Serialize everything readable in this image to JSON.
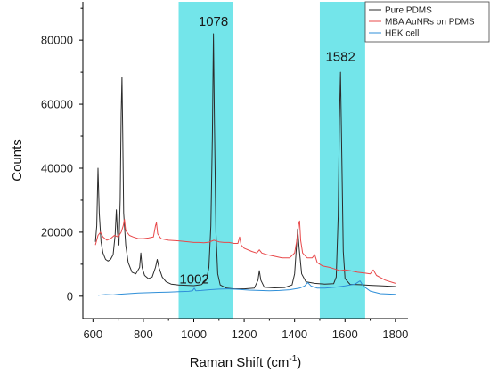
{
  "chart_data": {
    "type": "line",
    "xlabel": "Raman Shift (cm",
    "xlabel_sup": "-1",
    "xlabel_tail": ")",
    "ylabel": "Counts",
    "xlim": [
      560,
      1850
    ],
    "ylim": [
      -7000,
      92000
    ],
    "xticks": [
      600,
      800,
      1000,
      1200,
      1400,
      1600,
      1800
    ],
    "yticks": [
      0,
      20000,
      40000,
      60000,
      80000
    ],
    "grid": false,
    "legend_position": "top-right",
    "highlight_bands": [
      {
        "from": 940,
        "to": 1155,
        "color": "#73e5ea"
      },
      {
        "from": 1500,
        "to": 1680,
        "color": "#73e5ea"
      }
    ],
    "annotations": [
      {
        "text": "1078",
        "x": 1078,
        "y": 84500
      },
      {
        "text": "1582",
        "x": 1582,
        "y": 73500
      },
      {
        "text": "1002",
        "x": 1002,
        "y": 4000
      }
    ],
    "series": [
      {
        "name": "Pure PDMS",
        "color": "#2b2b2b",
        "points": [
          [
            610,
            17000
          ],
          [
            615,
            22000
          ],
          [
            620,
            40000
          ],
          [
            625,
            26000
          ],
          [
            632,
            17000
          ],
          [
            640,
            13500
          ],
          [
            650,
            11500
          ],
          [
            660,
            11000
          ],
          [
            670,
            11500
          ],
          [
            680,
            13000
          ],
          [
            688,
            19000
          ],
          [
            693,
            27000
          ],
          [
            697,
            20000
          ],
          [
            703,
            16000
          ],
          [
            708,
            30000
          ],
          [
            712,
            57000
          ],
          [
            715,
            68500
          ],
          [
            718,
            52000
          ],
          [
            722,
            26000
          ],
          [
            730,
            16000
          ],
          [
            740,
            10500
          ],
          [
            755,
            7500
          ],
          [
            770,
            7000
          ],
          [
            785,
            9000
          ],
          [
            790,
            13500
          ],
          [
            795,
            9000
          ],
          [
            805,
            6500
          ],
          [
            820,
            5500
          ],
          [
            835,
            6000
          ],
          [
            848,
            9000
          ],
          [
            855,
            11500
          ],
          [
            862,
            9000
          ],
          [
            875,
            6000
          ],
          [
            890,
            4500
          ],
          [
            910,
            3800
          ],
          [
            940,
            3500
          ],
          [
            970,
            3400
          ],
          [
            1000,
            3300
          ],
          [
            1030,
            3600
          ],
          [
            1050,
            5000
          ],
          [
            1060,
            9000
          ],
          [
            1068,
            22000
          ],
          [
            1074,
            50000
          ],
          [
            1078,
            82000
          ],
          [
            1082,
            55000
          ],
          [
            1088,
            20000
          ],
          [
            1095,
            7000
          ],
          [
            1105,
            3500
          ],
          [
            1130,
            2500
          ],
          [
            1160,
            2300
          ],
          [
            1200,
            2300
          ],
          [
            1240,
            2500
          ],
          [
            1255,
            5000
          ],
          [
            1260,
            8000
          ],
          [
            1266,
            5000
          ],
          [
            1280,
            2800
          ],
          [
            1320,
            2600
          ],
          [
            1360,
            2700
          ],
          [
            1390,
            3500
          ],
          [
            1400,
            7000
          ],
          [
            1408,
            16000
          ],
          [
            1412,
            21000
          ],
          [
            1418,
            15000
          ],
          [
            1428,
            7000
          ],
          [
            1445,
            4500
          ],
          [
            1480,
            4000
          ],
          [
            1520,
            3800
          ],
          [
            1555,
            3900
          ],
          [
            1565,
            6000
          ],
          [
            1573,
            25000
          ],
          [
            1578,
            55000
          ],
          [
            1582,
            70000
          ],
          [
            1587,
            45000
          ],
          [
            1593,
            14000
          ],
          [
            1600,
            5500
          ],
          [
            1620,
            3700
          ],
          [
            1660,
            3600
          ],
          [
            1700,
            3400
          ],
          [
            1750,
            3200
          ],
          [
            1800,
            3000
          ]
        ]
      },
      {
        "name": "MBA AuNRs on PDMS",
        "color": "#e8484a",
        "points": [
          [
            610,
            16000
          ],
          [
            620,
            19000
          ],
          [
            630,
            20000
          ],
          [
            640,
            18500
          ],
          [
            655,
            17500
          ],
          [
            670,
            18000
          ],
          [
            685,
            19000
          ],
          [
            700,
            18500
          ],
          [
            712,
            20000
          ],
          [
            720,
            22000
          ],
          [
            725,
            24000
          ],
          [
            730,
            20500
          ],
          [
            745,
            19000
          ],
          [
            760,
            18500
          ],
          [
            780,
            18000
          ],
          [
            800,
            18000
          ],
          [
            820,
            18200
          ],
          [
            840,
            18500
          ],
          [
            848,
            22000
          ],
          [
            852,
            23000
          ],
          [
            857,
            19500
          ],
          [
            870,
            18000
          ],
          [
            900,
            17500
          ],
          [
            940,
            17300
          ],
          [
            980,
            17000
          ],
          [
            1000,
            16800
          ],
          [
            1020,
            16800
          ],
          [
            1040,
            16700
          ],
          [
            1060,
            16900
          ],
          [
            1080,
            17500
          ],
          [
            1100,
            17000
          ],
          [
            1120,
            16800
          ],
          [
            1140,
            16800
          ],
          [
            1160,
            16500
          ],
          [
            1175,
            16500
          ],
          [
            1182,
            18500
          ],
          [
            1188,
            16000
          ],
          [
            1200,
            15000
          ],
          [
            1230,
            14000
          ],
          [
            1250,
            13500
          ],
          [
            1260,
            14500
          ],
          [
            1270,
            13500
          ],
          [
            1290,
            13000
          ],
          [
            1320,
            12500
          ],
          [
            1350,
            12000
          ],
          [
            1380,
            12000
          ],
          [
            1400,
            13500
          ],
          [
            1410,
            18000
          ],
          [
            1416,
            22500
          ],
          [
            1420,
            23500
          ],
          [
            1424,
            17500
          ],
          [
            1432,
            13500
          ],
          [
            1450,
            12000
          ],
          [
            1470,
            12000
          ],
          [
            1480,
            13000
          ],
          [
            1490,
            10500
          ],
          [
            1510,
            9500
          ],
          [
            1540,
            9000
          ],
          [
            1560,
            8500
          ],
          [
            1580,
            8000
          ],
          [
            1600,
            8200
          ],
          [
            1620,
            8000
          ],
          [
            1650,
            7500
          ],
          [
            1680,
            7200
          ],
          [
            1700,
            7000
          ],
          [
            1712,
            8200
          ],
          [
            1725,
            6500
          ],
          [
            1760,
            5000
          ],
          [
            1800,
            4000
          ]
        ]
      },
      {
        "name": "HEK cell",
        "color": "#2f8fd8",
        "points": [
          [
            620,
            300
          ],
          [
            650,
            500
          ],
          [
            680,
            400
          ],
          [
            700,
            600
          ],
          [
            740,
            800
          ],
          [
            780,
            1000
          ],
          [
            820,
            1100
          ],
          [
            860,
            1200
          ],
          [
            900,
            1300
          ],
          [
            940,
            1400
          ],
          [
            980,
            1500
          ],
          [
            995,
            1700
          ],
          [
            1002,
            2500
          ],
          [
            1008,
            1700
          ],
          [
            1030,
            1800
          ],
          [
            1060,
            2000
          ],
          [
            1100,
            2200
          ],
          [
            1140,
            2300
          ],
          [
            1180,
            2100
          ],
          [
            1220,
            1900
          ],
          [
            1260,
            1800
          ],
          [
            1300,
            1700
          ],
          [
            1340,
            1800
          ],
          [
            1380,
            2000
          ],
          [
            1420,
            2500
          ],
          [
            1440,
            3200
          ],
          [
            1452,
            4300
          ],
          [
            1465,
            3200
          ],
          [
            1490,
            2500
          ],
          [
            1520,
            2500
          ],
          [
            1560,
            2800
          ],
          [
            1600,
            3200
          ],
          [
            1640,
            3800
          ],
          [
            1660,
            4800
          ],
          [
            1672,
            3200
          ],
          [
            1700,
            1600
          ],
          [
            1740,
            800
          ],
          [
            1800,
            600
          ]
        ]
      }
    ]
  }
}
